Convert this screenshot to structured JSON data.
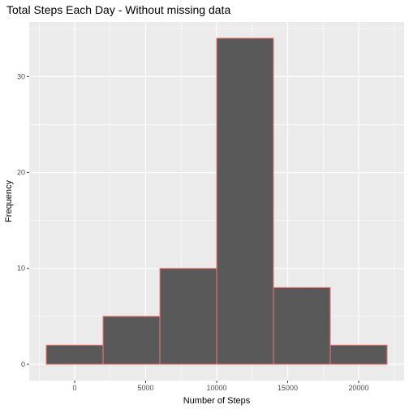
{
  "chart_data": {
    "type": "bar",
    "title": "Total Steps Each Day - Without missing data",
    "xlabel": "Number of Steps",
    "ylabel": "Frequency",
    "bins": [
      {
        "x0": -2000,
        "x1": 2000,
        "count": 2
      },
      {
        "x0": 2000,
        "x1": 6000,
        "count": 5
      },
      {
        "x0": 6000,
        "x1": 10000,
        "count": 10
      },
      {
        "x0": 10000,
        "x1": 14000,
        "count": 34
      },
      {
        "x0": 14000,
        "x1": 18000,
        "count": 8
      },
      {
        "x0": 18000,
        "x1": 22000,
        "count": 2
      }
    ],
    "xlim": [
      -3200,
      23200
    ],
    "ylim": [
      -1.7,
      35.7
    ],
    "x_ticks": [
      0,
      5000,
      10000,
      15000,
      20000
    ],
    "x_tick_labels": [
      "0",
      "5000",
      "10000",
      "15000",
      "20000"
    ],
    "y_ticks": [
      0,
      10,
      20,
      30
    ],
    "y_tick_labels": [
      "0",
      "10",
      "20",
      "30"
    ],
    "grid": true,
    "colors": {
      "panel_background": "#ebebeb",
      "grid_major": "#ffffff",
      "bar_fill": "#595959",
      "bar_outline": "#f8766d",
      "tick_mark": "#333333"
    }
  }
}
